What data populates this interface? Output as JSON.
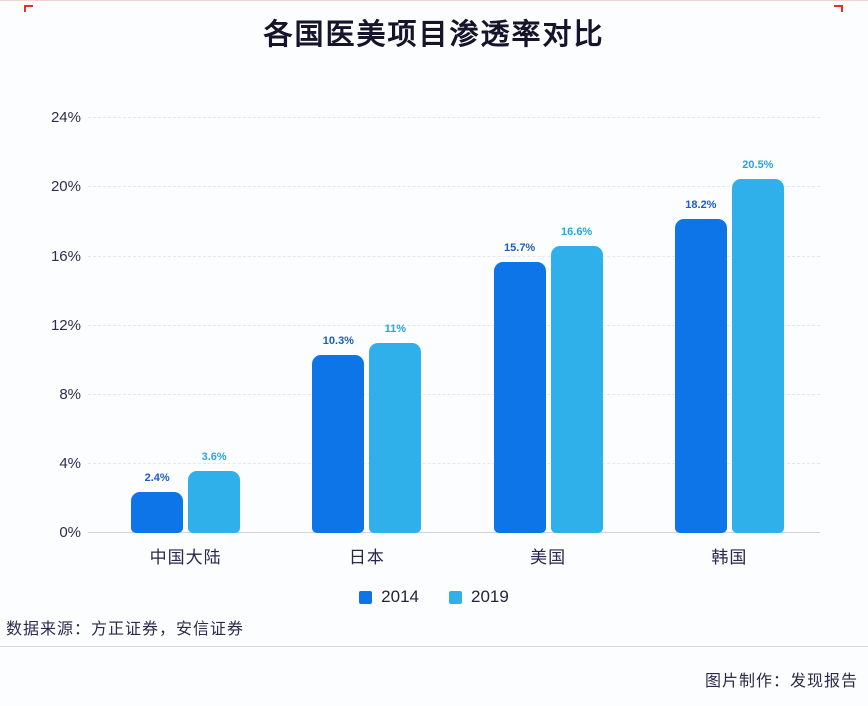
{
  "title": "各国医美项目渗透率对比",
  "chart_data": {
    "type": "bar",
    "title": "各国医美项目渗透率对比",
    "categories": [
      "中国大陆",
      "日本",
      "美国",
      "韩国"
    ],
    "series": [
      {
        "name": "2014",
        "values": [
          2.4,
          10.3,
          15.7,
          18.2
        ],
        "labels": [
          "2.4%",
          "10.3%",
          "15.7%",
          "18.2%"
        ],
        "color": "#0d75e8",
        "label_color": "#1a5cc8"
      },
      {
        "name": "2019",
        "values": [
          3.6,
          11.0,
          16.6,
          20.5
        ],
        "labels": [
          "3.6%",
          "11%",
          "16.6%",
          "20.5%"
        ],
        "color": "#30b0eb",
        "label_color": "#2aa3e2"
      }
    ],
    "xlabel": "",
    "ylabel": "",
    "ylim": [
      0,
      25
    ],
    "yticks": [
      {
        "value": 0,
        "label": "0%"
      },
      {
        "value": 4,
        "label": "4%"
      },
      {
        "value": 8,
        "label": "8%"
      },
      {
        "value": 12,
        "label": "12%"
      },
      {
        "value": 16,
        "label": "16%"
      },
      {
        "value": 20,
        "label": "20%"
      },
      {
        "value": 24,
        "label": "24%"
      }
    ],
    "grid": "horizontal-dashed",
    "legend_position": "bottom-center"
  },
  "legend": {
    "items": [
      {
        "label": "2014",
        "color": "#0d75e8"
      },
      {
        "label": "2019",
        "color": "#30b0eb"
      }
    ]
  },
  "footer": {
    "source": "数据来源：方正证券，安信证券",
    "credit": "图片制作：发现报告"
  }
}
